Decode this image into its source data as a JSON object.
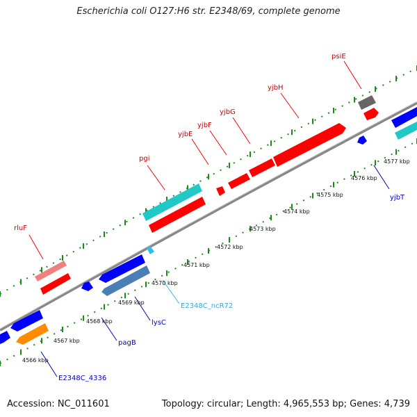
{
  "title": "Escherichia coli O127:H6 str. E2348/69, complete genome",
  "footer": {
    "accession": "Accession: NC_011601",
    "summary": "Topology: circular; Length: 4,965,553 bp; Genes: 4,739"
  },
  "colors": {
    "forward_gene": "#ff0000",
    "forward_pseudo": "#f08080",
    "forward_cds_cyan": "#20c8c8",
    "forward_gray": "#666666",
    "reverse_gene": "#0000ff",
    "reverse_steel": "#4a7fb5",
    "reverse_orange": "#ff8c00",
    "ncrna": "#33bbee",
    "axis": "#888888",
    "tick": "#1a8a1a"
  },
  "scale_ticks": [
    "4566 kbp",
    "4567 kbp",
    "4568 kbp",
    "4569 kbp",
    "4570 kbp",
    "4571 kbp",
    "4572 kbp",
    "4573 kbp",
    "4574 kbp",
    "4575 kbp",
    "4576 kbp",
    "4577 kbp"
  ],
  "forward_labels": [
    "rluF",
    "pgi",
    "yjbE",
    "yjbF",
    "yjbG",
    "yjbH",
    "psiE"
  ],
  "reverse_labels": [
    "E2348C_4336",
    "pagB",
    "lysC",
    "E2348C_ncR72",
    "yjbT"
  ]
}
